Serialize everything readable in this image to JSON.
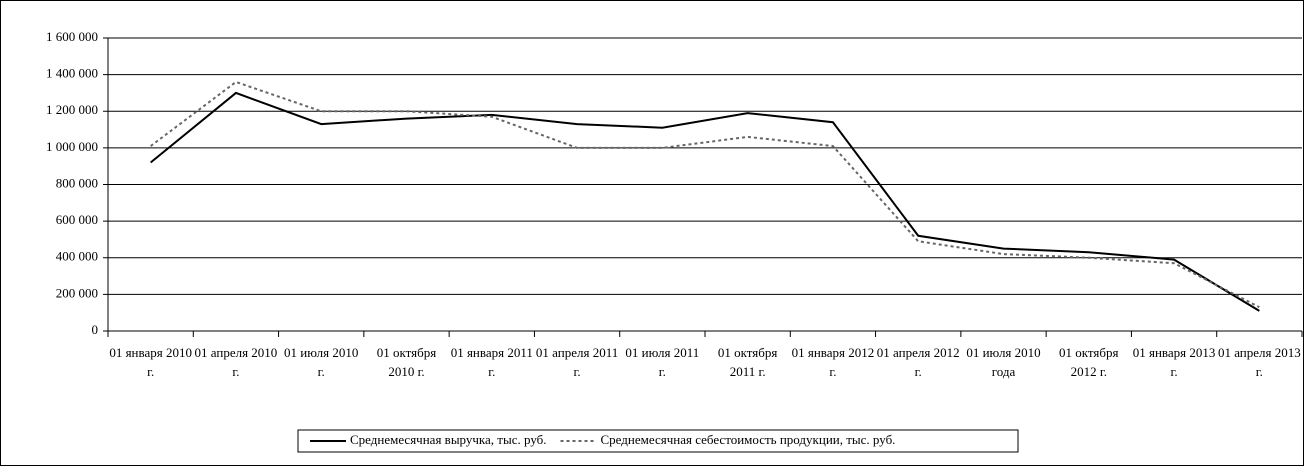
{
  "chart_data": {
    "type": "line",
    "categories": [
      "01 января 2010 г.",
      "01 апреля 2010 г.",
      "01 июля 2010 г.",
      "01 октября 2010 г.",
      "01 января 2011 г.",
      "01 апреля 2011 г.",
      "01 июля 2011 г.",
      "01 октября 2011 г.",
      "01 января 2012 г.",
      "01 апреля 2012 г.",
      "01 июля 2010 года",
      "01 октября 2012 г.",
      "01 января 2013 г.",
      "01 апреля 2013 г."
    ],
    "series": [
      {
        "name": "Среднемесячная выручка, тыс. руб.",
        "color": "#000000",
        "dash": "solid",
        "values": [
          920000,
          1300000,
          1130000,
          1160000,
          1180000,
          1130000,
          1110000,
          1190000,
          1140000,
          520000,
          450000,
          430000,
          390000,
          110000
        ]
      },
      {
        "name": "Среднемесячная себестоимость продукции, тыс. руб.",
        "color": "#666666",
        "dash": "dotted",
        "values": [
          1010000,
          1360000,
          1200000,
          1200000,
          1170000,
          1000000,
          1000000,
          1060000,
          1010000,
          490000,
          420000,
          400000,
          370000,
          130000
        ]
      }
    ],
    "ylim": [
      0,
      1600000
    ],
    "yticks": [
      0,
      {
        "value": 200000,
        "label": "200 000"
      },
      {
        "value": 400000,
        "label": "400 000"
      },
      {
        "value": 600000,
        "label": "600 000"
      },
      {
        "value": 800000,
        "label": "800 000"
      },
      {
        "value": 1000000,
        "label": "1 000 000"
      },
      {
        "value": 1200000,
        "label": "1 200 000"
      },
      {
        "value": 1400000,
        "label": "1 400 000"
      },
      {
        "value": 1600000,
        "label": "1 600 000"
      }
    ],
    "grid": true,
    "legend": "bottom"
  }
}
